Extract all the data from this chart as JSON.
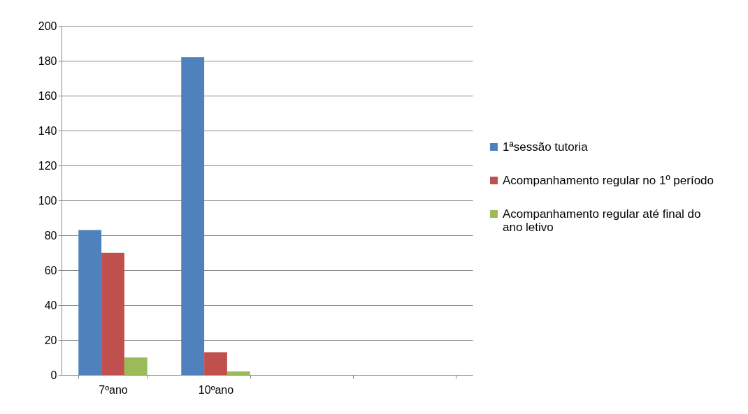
{
  "chart_data": {
    "type": "bar",
    "categories": [
      "7ºano",
      "10ºano",
      null,
      null
    ],
    "series": [
      {
        "name": "1ªsessão tutoria",
        "color": "#4f81bd",
        "values": [
          83,
          182,
          null,
          null
        ]
      },
      {
        "name": "Acompanhamento regular no 1º período",
        "color": "#c0504d",
        "values": [
          70,
          13,
          null,
          null
        ]
      },
      {
        "name": "Acompanhamento regular até final do ano letivo",
        "color": "#9bbb59",
        "values": [
          10,
          2,
          null,
          null
        ]
      }
    ],
    "ylim": [
      0,
      200
    ],
    "yticks": [
      0,
      20,
      40,
      60,
      80,
      100,
      120,
      140,
      160,
      180,
      200
    ],
    "grid": "y",
    "legend": "right"
  }
}
